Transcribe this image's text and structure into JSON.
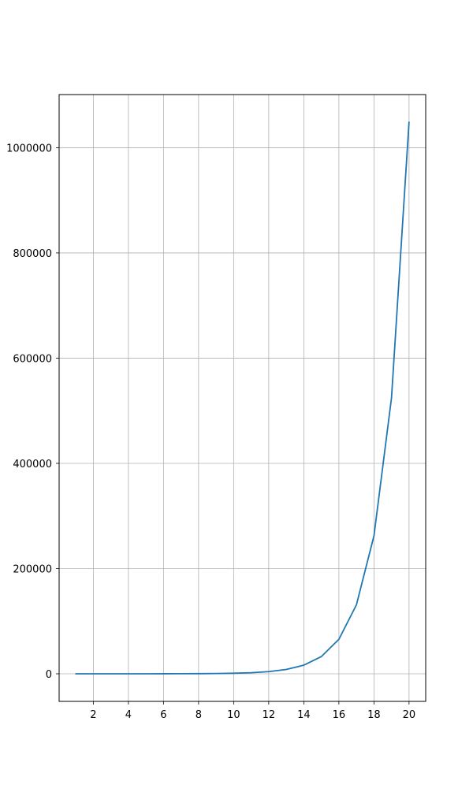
{
  "chart_data": {
    "type": "line",
    "title": "",
    "xlabel": "",
    "ylabel": "",
    "xlim": [
      0.05,
      20.95
    ],
    "ylim": [
      -52428.7,
      1101010.7
    ],
    "grid": true,
    "x_ticks": [
      2,
      4,
      6,
      8,
      10,
      12,
      14,
      16,
      18,
      20
    ],
    "x_tick_labels": [
      "2",
      "4",
      "6",
      "8",
      "10",
      "12",
      "14",
      "16",
      "18",
      "20"
    ],
    "y_ticks": [
      0,
      200000,
      400000,
      600000,
      800000,
      1000000
    ],
    "y_tick_labels": [
      "0",
      "200000",
      "400000",
      "600000",
      "800000",
      "1000000"
    ],
    "series": [
      {
        "color": "#1f77b4",
        "x": [
          1,
          2,
          3,
          4,
          5,
          6,
          7,
          8,
          9,
          10,
          11,
          12,
          13,
          14,
          15,
          16,
          17,
          18,
          19,
          20
        ],
        "y": [
          2,
          4,
          8,
          16,
          32,
          64,
          128,
          256,
          512,
          1024,
          2048,
          4096,
          8192,
          16384,
          32768,
          65536,
          131072,
          262144,
          524288,
          1048576
        ]
      }
    ],
    "colors": {
      "grid": "#b0b0b0",
      "axes": "#000000"
    }
  }
}
